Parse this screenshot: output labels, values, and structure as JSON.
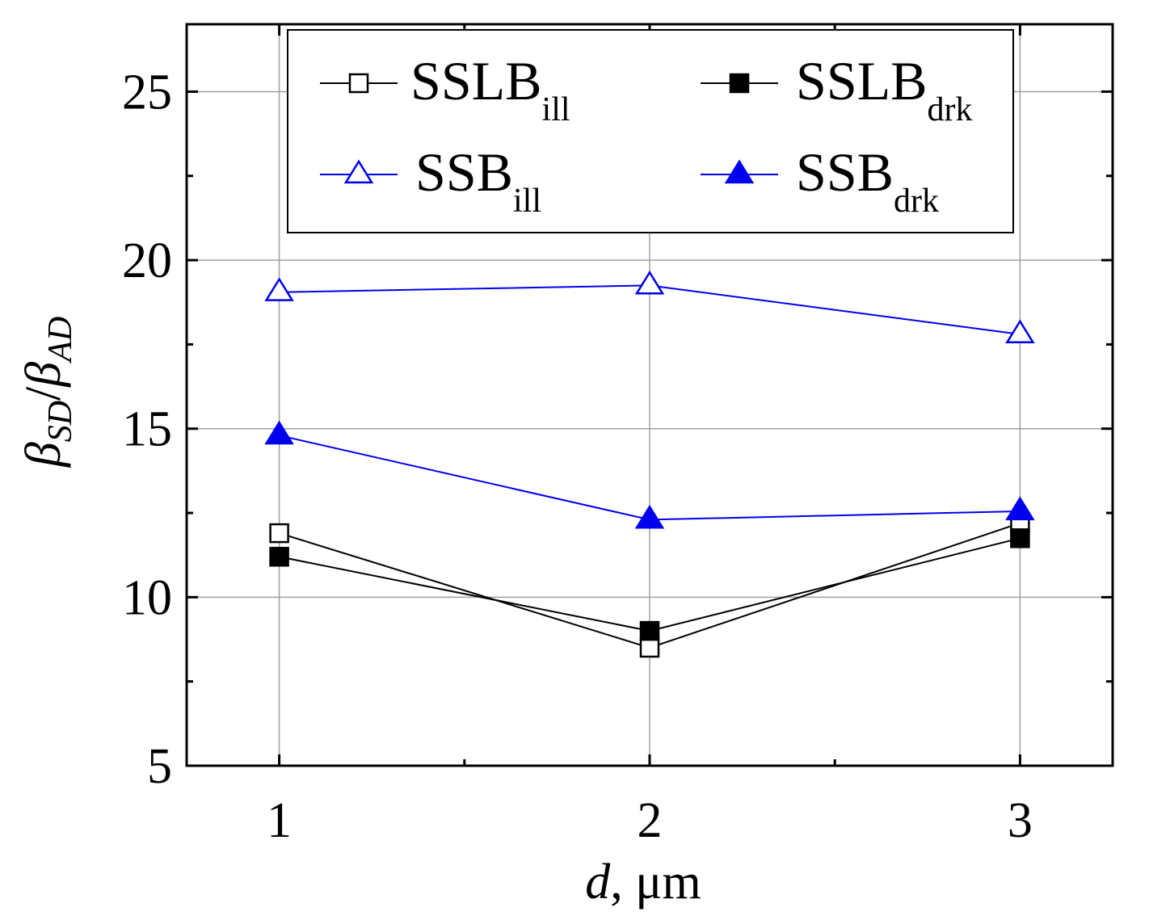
{
  "chart_data": {
    "type": "line",
    "title": "",
    "xlabel": "d, μm",
    "xlabel_parts": {
      "var": "d",
      "rest": ", μm"
    },
    "ylabel_parts": {
      "beta1": "β",
      "sub1": "SD",
      "slash": "/",
      "beta2": "β",
      "sub2": "AD"
    },
    "x": [
      1,
      2,
      3
    ],
    "xlim": [
      0.75,
      3.25
    ],
    "ylim": [
      5,
      27
    ],
    "x_ticks": [
      "1",
      "2",
      "3"
    ],
    "y_ticks": [
      "5",
      "10",
      "15",
      "20",
      "25"
    ],
    "grid": true,
    "legend_position": "top",
    "series": [
      {
        "key": "sslb_ill",
        "name_main": "SSLB",
        "name_sub": "ill",
        "marker": "square-open",
        "color": "#000000",
        "values": [
          11.9,
          8.5,
          12.2
        ]
      },
      {
        "key": "sslb_drk",
        "name_main": "SSLB",
        "name_sub": "drk",
        "marker": "square-filled",
        "color": "#000000",
        "values": [
          11.2,
          9.0,
          11.75
        ]
      },
      {
        "key": "ssb_ill",
        "name_main": "SSB",
        "name_sub": "ill",
        "marker": "triangle-open",
        "color": "#0000ee",
        "values": [
          19.05,
          19.25,
          17.8
        ]
      },
      {
        "key": "ssb_drk",
        "name_main": "SSB",
        "name_sub": "drk",
        "marker": "triangle-filled",
        "color": "#0000ee",
        "values": [
          14.8,
          12.3,
          12.55
        ]
      }
    ]
  }
}
